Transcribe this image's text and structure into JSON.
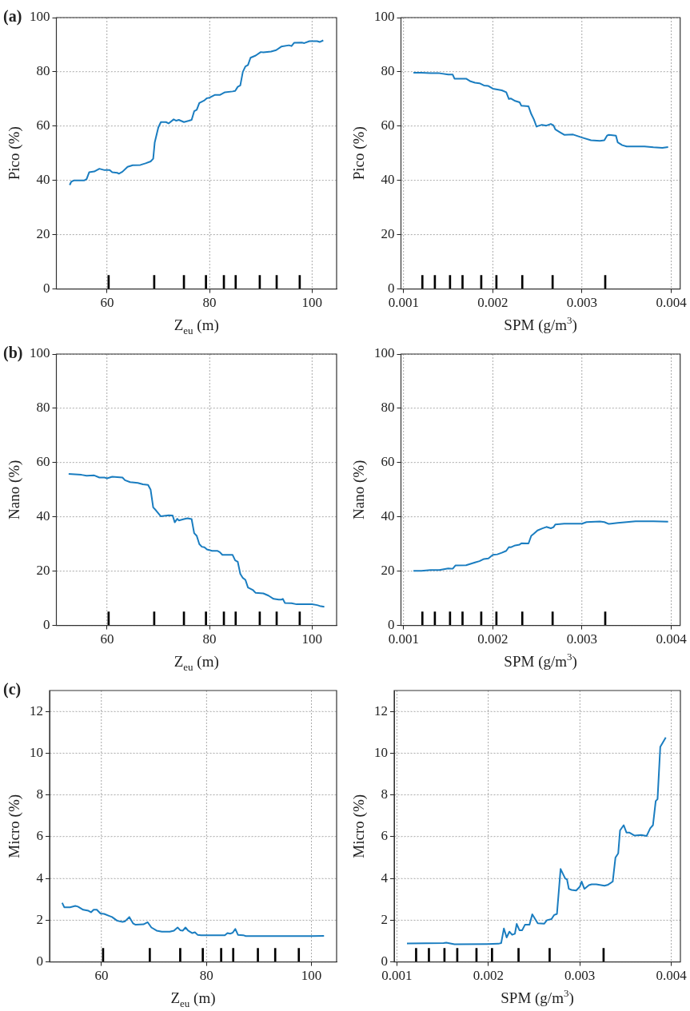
{
  "chart_data": [
    {
      "type": "line",
      "title": "(a)",
      "xlabel": "Z$_{eu}$ (m)",
      "ylabel": "Pico (%)",
      "xlim": [
        50.1,
        104.8
      ],
      "xticks": [
        60,
        80,
        100
      ],
      "ylim": [
        0,
        100
      ],
      "yticks": [
        0,
        20,
        40,
        60,
        80,
        100
      ],
      "grid": true,
      "series": [
        {
          "color": "#1a7dc0",
          "x": [
            52.7,
            53.0,
            53.5,
            55.5,
            56,
            56.5,
            57.5,
            58.5,
            59.5,
            60.5,
            61,
            62,
            62.3,
            63,
            64,
            65,
            66.5,
            67.5,
            68.5,
            69,
            69.3,
            70,
            70.5,
            71.5,
            72,
            73,
            73.5,
            74,
            75,
            76,
            76.5,
            77,
            77.5,
            78,
            79,
            79.5,
            80,
            81,
            82,
            83,
            84.5,
            85,
            85.5,
            86,
            86.5,
            87,
            87.5,
            88,
            89,
            90,
            90.5,
            92,
            93,
            94,
            95.5,
            96,
            96.5,
            98,
            98.5,
            99.5,
            101,
            101.5,
            102.2
          ],
          "values": [
            38.3,
            39.5,
            40,
            40,
            40.5,
            43,
            43.3,
            44.3,
            43.8,
            43.8,
            43,
            42.8,
            42.5,
            43.2,
            45,
            45.6,
            45.7,
            46.3,
            47,
            48,
            54,
            59.5,
            61.5,
            61.5,
            61,
            62.5,
            62,
            62.3,
            61.5,
            62,
            62.3,
            65.5,
            66,
            68.5,
            69.5,
            70.3,
            70.5,
            71.5,
            71.5,
            72.5,
            72.8,
            73,
            74.5,
            75,
            80,
            82,
            82.5,
            85.2,
            86,
            87.3,
            87.2,
            87.5,
            88,
            89.3,
            89.8,
            89.5,
            90.7,
            90.8,
            90.6,
            91.3,
            91.3,
            91,
            91.6
          ]
        },
        {
          "type": "bar",
          "color": "#000000",
          "x": [
            60.3,
            69.2,
            75,
            79.3,
            82.8,
            85.1,
            89.8,
            93.1,
            97.6
          ],
          "values": [
            5,
            5,
            5,
            5,
            5,
            5,
            5,
            5,
            5
          ]
        }
      ]
    },
    {
      "type": "line",
      "xlabel": "SPM (g/m$^{3}$)",
      "ylabel": "Pico (%)",
      "xlim": [
        0.00097,
        0.0041
      ],
      "xticks": [
        0.001,
        0.002,
        0.003,
        0.004
      ],
      "ylim": [
        0,
        100
      ],
      "yticks": [
        0,
        20,
        40,
        60,
        80,
        100
      ],
      "grid": true,
      "series": [
        {
          "color": "#1a7dc0",
          "x": [
            0.00111,
            0.0012,
            0.0013,
            0.0014,
            0.0015,
            0.00155,
            0.00157,
            0.0017,
            0.00175,
            0.0018,
            0.00185,
            0.0019,
            0.00195,
            0.002,
            0.00205,
            0.0021,
            0.00215,
            0.00218,
            0.0022,
            0.00225,
            0.0023,
            0.00232,
            0.0024,
            0.00243,
            0.00246,
            0.00249,
            0.0025,
            0.00255,
            0.0026,
            0.00265,
            0.00268,
            0.0027,
            0.00275,
            0.0028,
            0.0029,
            0.003,
            0.0031,
            0.0032,
            0.00325,
            0.00328,
            0.0033,
            0.00338,
            0.0034,
            0.00345,
            0.0035,
            0.0037,
            0.0038,
            0.0039,
            0.003965
          ],
          "values": [
            79.7,
            79.7,
            79.5,
            79.5,
            79,
            79,
            77.5,
            77.5,
            76.5,
            76,
            75.8,
            75,
            74.8,
            73.8,
            73.5,
            73.2,
            72.5,
            70,
            70.2,
            69.3,
            68.8,
            67.5,
            67.3,
            64.5,
            62.5,
            59.8,
            60,
            60.5,
            60.2,
            60.8,
            60.3,
            58.8,
            57.8,
            56.8,
            56.9,
            55.8,
            54.8,
            54.6,
            54.8,
            56.5,
            56.8,
            56.5,
            54,
            53,
            52.5,
            52.5,
            52.2,
            52,
            52.3
          ]
        },
        {
          "type": "bar",
          "color": "#000000",
          "x": [
            0.00121,
            0.00135,
            0.00152,
            0.00166,
            0.00187,
            0.00204,
            0.00233,
            0.00267,
            0.00326
          ],
          "values": [
            5,
            5,
            5,
            5,
            5,
            5,
            5,
            5,
            5
          ]
        }
      ]
    },
    {
      "type": "line",
      "title": "(b)",
      "xlabel": "Z$_{eu}$ (m)",
      "ylabel": "Nano (%)",
      "xlim": [
        50.1,
        104.8
      ],
      "xticks": [
        60,
        80,
        100
      ],
      "ylim": [
        0,
        100
      ],
      "yticks": [
        0,
        20,
        40,
        60,
        80,
        100
      ],
      "grid": true,
      "series": [
        {
          "color": "#1a7dc0",
          "x": [
            52.5,
            55,
            56,
            57.5,
            58.5,
            59.5,
            60,
            60.5,
            61,
            63,
            63.5,
            64.5,
            66,
            67,
            68,
            68.5,
            69,
            69.5,
            70.5,
            72,
            72.8,
            73.2,
            73.7,
            74,
            75,
            75.7,
            76.5,
            77,
            77.5,
            78,
            78.5,
            79,
            79.5,
            80.5,
            81.5,
            82,
            82.5,
            84.5,
            85,
            85.5,
            86,
            86.5,
            87,
            87.5,
            88.5,
            89,
            90.5,
            91.5,
            92.5,
            93.5,
            94,
            94.3,
            94.7,
            96,
            97,
            98,
            100,
            101,
            101.5,
            102.4
          ],
          "values": [
            55.8,
            55.5,
            55.2,
            55.3,
            54.5,
            54.5,
            54.2,
            54.5,
            54.8,
            54.5,
            53.5,
            52.8,
            52.5,
            52,
            51.8,
            50,
            43.5,
            42.5,
            40.2,
            40.6,
            40.5,
            38,
            39.3,
            38.7,
            39.2,
            39.5,
            39.2,
            34,
            33,
            30,
            29,
            28.8,
            28,
            27.5,
            27.5,
            27,
            26,
            26,
            24,
            23.5,
            19,
            17.5,
            16.8,
            14,
            13,
            12,
            11.8,
            11,
            9.8,
            9.5,
            9.5,
            9.8,
            8.3,
            8.2,
            7.8,
            7.8,
            7.8,
            7.5,
            7.2,
            6.9
          ]
        },
        {
          "type": "bar",
          "color": "#000000",
          "x": [
            60.3,
            69.2,
            75,
            79.3,
            82.8,
            85.1,
            89.8,
            93.1,
            97.6
          ],
          "values": [
            5,
            5,
            5,
            5,
            5,
            5,
            5,
            5,
            5
          ]
        }
      ]
    },
    {
      "type": "line",
      "xlabel": "SPM (g/m$^{3}$)",
      "ylabel": "Nano (%)",
      "xlim": [
        0.00097,
        0.0041
      ],
      "xticks": [
        0.001,
        0.002,
        0.003,
        0.004
      ],
      "ylim": [
        0,
        100
      ],
      "yticks": [
        0,
        20,
        40,
        60,
        80,
        100
      ],
      "grid": true,
      "series": [
        {
          "color": "#1a7dc0",
          "x": [
            0.00111,
            0.0012,
            0.0013,
            0.0014,
            0.0015,
            0.00155,
            0.00158,
            0.0017,
            0.0018,
            0.00185,
            0.0019,
            0.00195,
            0.002,
            0.00205,
            0.0021,
            0.00215,
            0.00218,
            0.0022,
            0.00225,
            0.0023,
            0.00232,
            0.0024,
            0.00243,
            0.00246,
            0.0025,
            0.00255,
            0.0026,
            0.00265,
            0.00268,
            0.0027,
            0.0028,
            0.003,
            0.00305,
            0.0032,
            0.00325,
            0.0033,
            0.0034,
            0.0036,
            0.0038,
            0.003965
          ],
          "values": [
            20.1,
            20.1,
            20.4,
            20.4,
            21,
            20.9,
            22.1,
            22.2,
            23.2,
            23.7,
            24.5,
            24.7,
            26,
            26.2,
            26.8,
            27.5,
            28.9,
            28.8,
            29.5,
            29.8,
            30.3,
            30.2,
            33,
            33.8,
            35,
            35.7,
            36.3,
            35.8,
            36.2,
            37.2,
            37.5,
            37.5,
            38.1,
            38.3,
            38.1,
            37.4,
            37.8,
            38.4,
            38.4,
            38.2
          ]
        },
        {
          "type": "bar",
          "color": "#000000",
          "x": [
            0.00121,
            0.00135,
            0.00152,
            0.00166,
            0.00187,
            0.00204,
            0.00233,
            0.00267,
            0.00326
          ],
          "values": [
            5,
            5,
            5,
            5,
            5,
            5,
            5,
            5,
            5
          ]
        }
      ]
    },
    {
      "type": "line",
      "title": "(c)",
      "xlabel": "Z$_{eu}$ (m)",
      "ylabel": "Micro (%)",
      "xlim": [
        50.1,
        104.8
      ],
      "xticks": [
        60,
        80,
        100
      ],
      "ylim": [
        0,
        13
      ],
      "yticks": [
        0,
        2,
        4,
        6,
        8,
        10,
        12
      ],
      "grid": true,
      "series": [
        {
          "color": "#1a7dc0",
          "x": [
            52.5,
            52.9,
            54,
            55,
            55.5,
            56.5,
            57.5,
            58,
            58.5,
            59.1,
            59.8,
            60.5,
            61.5,
            62,
            63,
            64,
            64.5,
            65.3,
            66,
            66.5,
            68,
            68.8,
            69.5,
            70.5,
            71.5,
            73,
            73.8,
            74.5,
            75,
            75.5,
            76,
            76.5,
            77.3,
            77.8,
            78.3,
            79,
            80,
            83.5,
            84,
            84.5,
            85,
            85.5,
            86,
            87,
            87.5,
            90,
            95,
            100,
            102.4
          ],
          "values": [
            2.83,
            2.62,
            2.62,
            2.68,
            2.65,
            2.5,
            2.45,
            2.38,
            2.5,
            2.5,
            2.32,
            2.3,
            2.2,
            2.15,
            1.97,
            1.92,
            1.95,
            2.15,
            1.85,
            1.78,
            1.8,
            1.9,
            1.65,
            1.5,
            1.45,
            1.45,
            1.5,
            1.65,
            1.52,
            1.5,
            1.65,
            1.5,
            1.38,
            1.42,
            1.3,
            1.28,
            1.28,
            1.28,
            1.38,
            1.35,
            1.4,
            1.58,
            1.3,
            1.28,
            1.24,
            1.24,
            1.24,
            1.24,
            1.25
          ]
        },
        {
          "type": "bar",
          "color": "#000000",
          "x": [
            60.3,
            69.2,
            75,
            79.3,
            82.8,
            85.1,
            89.8,
            93.1,
            97.6
          ],
          "values": [
            0.65,
            0.65,
            0.65,
            0.65,
            0.65,
            0.65,
            0.65,
            0.65,
            0.65
          ]
        }
      ]
    },
    {
      "type": "line",
      "xlabel": "SPM (g/m$^{3}$)",
      "ylabel": "Micro (%)",
      "xlim": [
        0.00097,
        0.0041
      ],
      "xticks": [
        0.001,
        0.002,
        0.003,
        0.004
      ],
      "ylim": [
        0,
        13
      ],
      "yticks": [
        0,
        2,
        4,
        6,
        8,
        10,
        12
      ],
      "grid": true,
      "series": [
        {
          "color": "#1a7dc0",
          "x": [
            0.00111,
            0.00151,
            0.00154,
            0.00163,
            0.00199,
            0.00211,
            0.00214,
            0.00217,
            0.0022,
            0.00223,
            0.00226,
            0.00229,
            0.00231,
            0.00234,
            0.00237,
            0.0024,
            0.00245,
            0.00248,
            0.00254,
            0.00261,
            0.00264,
            0.00269,
            0.00272,
            0.00275,
            0.00279,
            0.00284,
            0.00286,
            0.00288,
            0.00291,
            0.00296,
            0.003,
            0.00302,
            0.00305,
            0.0031,
            0.00313,
            0.00318,
            0.00327,
            0.00331,
            0.00336,
            0.00339,
            0.00342,
            0.00344,
            0.00348,
            0.00351,
            0.00354,
            0.0036,
            0.00367,
            0.00373,
            0.00377,
            0.0038,
            0.00383,
            0.00385,
            0.00388,
            0.00394
          ],
          "values": [
            0.88,
            0.9,
            0.92,
            0.85,
            0.86,
            0.87,
            0.9,
            1.6,
            1.17,
            1.45,
            1.3,
            1.35,
            1.82,
            1.52,
            1.52,
            1.78,
            1.78,
            2.28,
            1.85,
            1.83,
            2.0,
            2.05,
            2.25,
            2.3,
            4.45,
            4.0,
            3.95,
            3.5,
            3.45,
            3.42,
            3.6,
            3.85,
            3.5,
            3.68,
            3.72,
            3.72,
            3.65,
            3.7,
            3.85,
            5.0,
            5.2,
            6.3,
            6.55,
            6.2,
            6.2,
            6.05,
            6.08,
            6.03,
            6.4,
            6.55,
            7.7,
            7.8,
            10.3,
            10.75
          ]
        },
        {
          "type": "bar",
          "color": "#000000",
          "x": [
            0.00121,
            0.00135,
            0.00152,
            0.00166,
            0.00187,
            0.00204,
            0.00233,
            0.00267,
            0.00326
          ],
          "values": [
            0.65,
            0.65,
            0.65,
            0.65,
            0.65,
            0.65,
            0.65,
            0.65,
            0.65
          ]
        }
      ]
    }
  ]
}
